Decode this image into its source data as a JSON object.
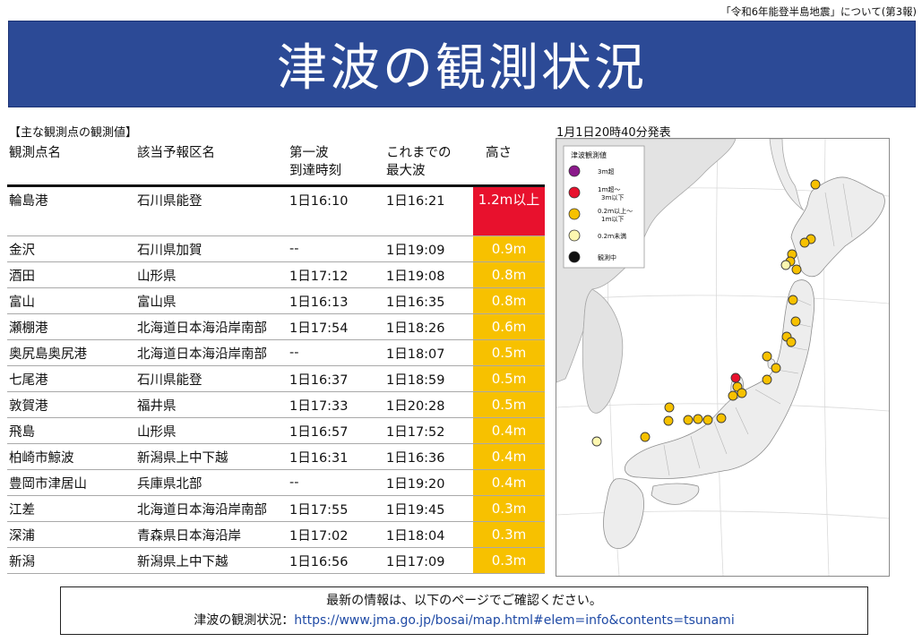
{
  "report_no": "「令和6年能登半島地震」について(第3報)",
  "title": "津波の観測状況",
  "section_label": "【主な観測点の観測値】",
  "issued": "1月1日20時40分発表",
  "table": {
    "headers": {
      "station": "観測点名",
      "region": "該当予報区名",
      "first_wave_1": "第一波",
      "first_wave_2": "到達時刻",
      "max_wave_1": "これまでの",
      "max_wave_2": "最大波",
      "height": "高さ"
    },
    "rows": [
      {
        "station": "輪島港",
        "region": "石川県能登",
        "first": "1日16:10",
        "max": "1日16:21",
        "height": "1.2m以上",
        "level": "red"
      },
      {
        "station": "金沢",
        "region": "石川県加賀",
        "first": "--",
        "max": "1日19:09",
        "height": "0.9m",
        "level": "orange"
      },
      {
        "station": "酒田",
        "region": "山形県",
        "first": "1日17:12",
        "max": "1日19:08",
        "height": "0.8m",
        "level": "orange"
      },
      {
        "station": "富山",
        "region": "富山県",
        "first": "1日16:13",
        "max": "1日16:35",
        "height": "0.8m",
        "level": "orange"
      },
      {
        "station": "瀬棚港",
        "region": "北海道日本海沿岸南部",
        "first": "1日17:54",
        "max": "1日18:26",
        "height": "0.6m",
        "level": "orange"
      },
      {
        "station": "奥尻島奥尻港",
        "region": "北海道日本海沿岸南部",
        "first": "--",
        "max": "1日18:07",
        "height": "0.5m",
        "level": "orange"
      },
      {
        "station": "七尾港",
        "region": "石川県能登",
        "first": "1日16:37",
        "max": "1日18:59",
        "height": "0.5m",
        "level": "orange"
      },
      {
        "station": "敦賀港",
        "region": "福井県",
        "first": "1日17:33",
        "max": "1日20:28",
        "height": "0.5m",
        "level": "orange"
      },
      {
        "station": "飛島",
        "region": "山形県",
        "first": "1日16:57",
        "max": "1日17:52",
        "height": "0.4m",
        "level": "orange"
      },
      {
        "station": "柏崎市鯨波",
        "region": "新潟県上中下越",
        "first": "1日16:31",
        "max": "1日16:36",
        "height": "0.4m",
        "level": "orange"
      },
      {
        "station": "豊岡市津居山",
        "region": "兵庫県北部",
        "first": "--",
        "max": "1日19:20",
        "height": "0.4m",
        "level": "orange"
      },
      {
        "station": "江差",
        "region": "北海道日本海沿岸南部",
        "first": "1日17:55",
        "max": "1日19:45",
        "height": "0.3m",
        "level": "orange"
      },
      {
        "station": "深浦",
        "region": "青森県日本海沿岸",
        "first": "1日17:02",
        "max": "1日18:04",
        "height": "0.3m",
        "level": "orange"
      },
      {
        "station": "新潟",
        "region": "新潟県上中下越",
        "first": "1日16:56",
        "max": "1日17:09",
        "height": "0.3m",
        "level": "orange"
      }
    ]
  },
  "colors": {
    "title_bg": "#2c4a96",
    "red": "#e8112d",
    "orange": "#f7c100",
    "purple": "#8b1a8b",
    "pale": "#fdf7b0",
    "black": "#111111"
  },
  "legend": {
    "title": "津波観測値",
    "items": [
      {
        "label1": "3ｍ超",
        "label2": "",
        "color": "purple"
      },
      {
        "label1": "1ｍ超～",
        "label2": "3ｍ以下",
        "color": "red"
      },
      {
        "label1": "0.2ｍ以上～",
        "label2": "1ｍ以下",
        "color": "orange"
      },
      {
        "label1": "0.2ｍ未満",
        "label2": "",
        "color": "pale"
      },
      {
        "label1": "観測中",
        "label2": "",
        "color": "black"
      }
    ]
  },
  "footer": {
    "line1": "最新の情報は、以下のページでご確認ください。",
    "line2_prefix": "津波の観測状況：",
    "url": "https://www.jma.go.jp/bosai/map.html#elem=info&contents=tsunami"
  }
}
